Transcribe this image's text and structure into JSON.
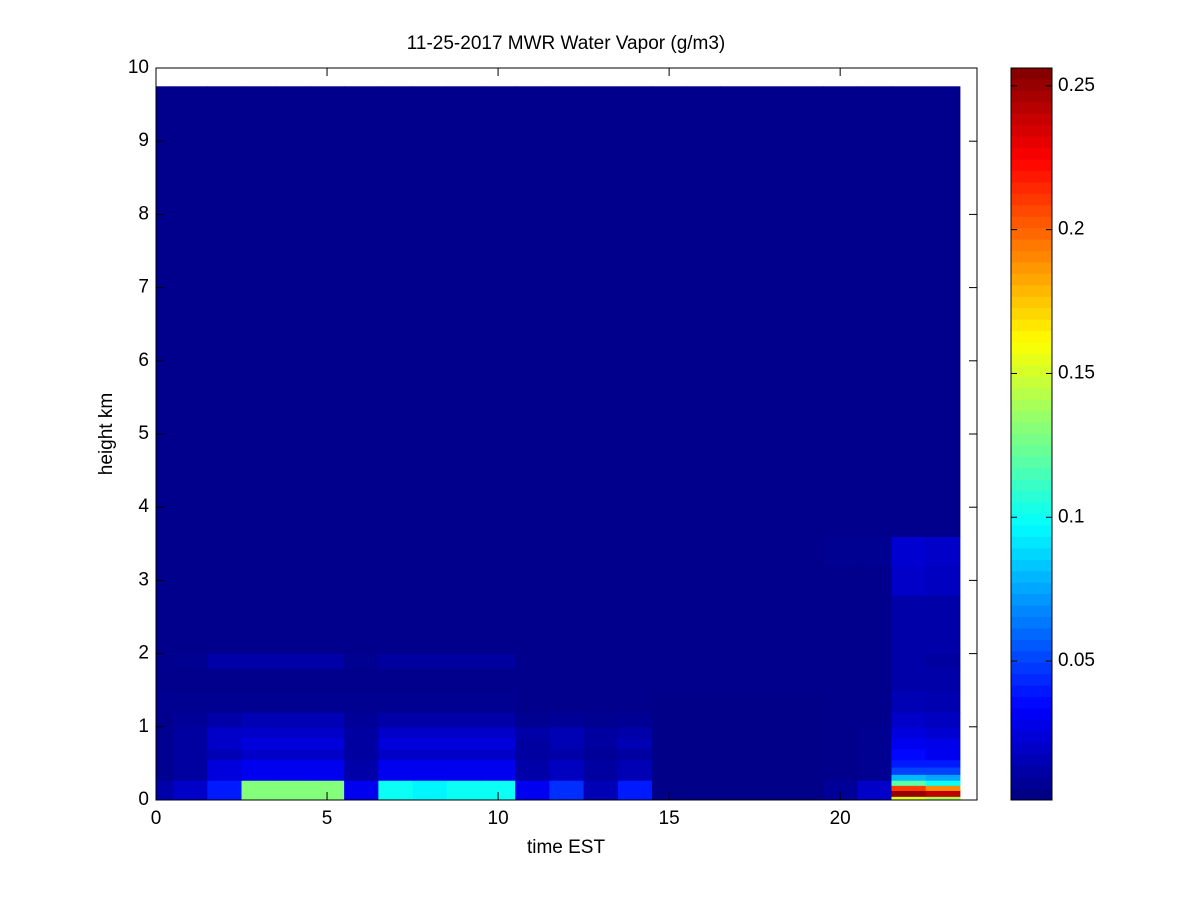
{
  "chart_data": {
    "type": "heatmap",
    "title": "11-25-2017 MWR Water Vapor (g/m3)",
    "xlabel": "time EST",
    "ylabel": "height km",
    "colormap": "jet",
    "xlim": [
      0,
      24
    ],
    "xticks": [
      0,
      5,
      10,
      15,
      20
    ],
    "ylim": [
      0,
      10
    ],
    "yticks": [
      0,
      1,
      2,
      3,
      4,
      5,
      6,
      7,
      8,
      9,
      10
    ],
    "clim": [
      0.0017,
      0.2562
    ],
    "cticks": [
      0.05,
      0.1,
      0.15,
      0.2,
      0.25
    ],
    "xbins": [
      0,
      0.5,
      1.5,
      2.5,
      3.5,
      4.5,
      5.5,
      6.5,
      7.5,
      8.5,
      9.5,
      10.5,
      11.5,
      12.5,
      13.5,
      14.5,
      15.5,
      16.5,
      17.5,
      18.5,
      19.5,
      20.5,
      21.5,
      22.5,
      23.5
    ],
    "ybins": [
      0,
      0.05,
      0.13,
      0.2,
      0.27,
      0.35,
      0.45,
      0.55,
      0.7,
      0.85,
      1.0,
      1.2,
      1.5,
      1.8,
      2.0,
      2.8,
      3.2,
      3.6,
      9.75
    ],
    "values": [
      [
        0.012,
        0.02,
        0.04,
        0.13,
        0.13,
        0.13,
        0.03,
        0.1,
        0.095,
        0.1,
        0.1,
        0.03,
        0.045,
        0.015,
        0.04,
        0.004,
        0.004,
        0.004,
        0.004,
        0.004,
        0.008,
        0.02,
        0.15,
        0.14
      ],
      [
        0.012,
        0.02,
        0.04,
        0.13,
        0.13,
        0.13,
        0.03,
        0.1,
        0.095,
        0.1,
        0.1,
        0.03,
        0.045,
        0.015,
        0.04,
        0.004,
        0.004,
        0.004,
        0.004,
        0.004,
        0.008,
        0.02,
        0.25,
        0.24
      ],
      [
        0.012,
        0.02,
        0.04,
        0.13,
        0.13,
        0.13,
        0.03,
        0.1,
        0.095,
        0.1,
        0.1,
        0.03,
        0.045,
        0.015,
        0.04,
        0.004,
        0.004,
        0.004,
        0.004,
        0.004,
        0.008,
        0.02,
        0.21,
        0.19
      ],
      [
        0.012,
        0.02,
        0.04,
        0.13,
        0.13,
        0.13,
        0.03,
        0.1,
        0.095,
        0.1,
        0.1,
        0.03,
        0.045,
        0.015,
        0.04,
        0.004,
        0.004,
        0.004,
        0.004,
        0.004,
        0.008,
        0.02,
        0.12,
        0.1
      ],
      [
        0.006,
        0.01,
        0.025,
        0.03,
        0.03,
        0.03,
        0.012,
        0.03,
        0.03,
        0.03,
        0.03,
        0.012,
        0.018,
        0.01,
        0.015,
        0.004,
        0.004,
        0.004,
        0.004,
        0.004,
        0.005,
        0.006,
        0.08,
        0.075
      ],
      [
        0.006,
        0.01,
        0.025,
        0.03,
        0.03,
        0.03,
        0.012,
        0.03,
        0.03,
        0.03,
        0.03,
        0.012,
        0.018,
        0.01,
        0.015,
        0.004,
        0.004,
        0.004,
        0.004,
        0.004,
        0.005,
        0.006,
        0.05,
        0.05
      ],
      [
        0.006,
        0.01,
        0.025,
        0.03,
        0.03,
        0.03,
        0.012,
        0.03,
        0.03,
        0.03,
        0.03,
        0.012,
        0.018,
        0.01,
        0.015,
        0.004,
        0.004,
        0.004,
        0.004,
        0.004,
        0.005,
        0.006,
        0.04,
        0.04
      ],
      [
        0.006,
        0.01,
        0.015,
        0.02,
        0.02,
        0.02,
        0.01,
        0.02,
        0.02,
        0.02,
        0.02,
        0.01,
        0.012,
        0.008,
        0.01,
        0.004,
        0.004,
        0.004,
        0.004,
        0.004,
        0.005,
        0.006,
        0.035,
        0.03
      ],
      [
        0.006,
        0.01,
        0.02,
        0.025,
        0.025,
        0.025,
        0.01,
        0.025,
        0.025,
        0.025,
        0.025,
        0.01,
        0.015,
        0.01,
        0.015,
        0.004,
        0.004,
        0.004,
        0.004,
        0.004,
        0.005,
        0.006,
        0.03,
        0.028
      ],
      [
        0.006,
        0.01,
        0.02,
        0.02,
        0.02,
        0.02,
        0.01,
        0.02,
        0.02,
        0.02,
        0.02,
        0.012,
        0.015,
        0.01,
        0.012,
        0.004,
        0.004,
        0.004,
        0.004,
        0.004,
        0.005,
        0.006,
        0.025,
        0.022
      ],
      [
        0.005,
        0.008,
        0.012,
        0.015,
        0.015,
        0.015,
        0.008,
        0.012,
        0.012,
        0.012,
        0.012,
        0.006,
        0.008,
        0.006,
        0.007,
        0.004,
        0.004,
        0.004,
        0.004,
        0.004,
        0.005,
        0.005,
        0.02,
        0.018
      ],
      [
        0.006,
        0.006,
        0.006,
        0.006,
        0.006,
        0.006,
        0.006,
        0.006,
        0.006,
        0.006,
        0.006,
        0.005,
        0.005,
        0.005,
        0.005,
        0.004,
        0.004,
        0.004,
        0.004,
        0.004,
        0.005,
        0.005,
        0.015,
        0.014
      ],
      [
        0.005,
        0.005,
        0.005,
        0.005,
        0.005,
        0.005,
        0.005,
        0.005,
        0.005,
        0.005,
        0.005,
        0.005,
        0.005,
        0.005,
        0.005,
        0.005,
        0.005,
        0.005,
        0.005,
        0.005,
        0.005,
        0.005,
        0.012,
        0.012
      ],
      [
        0.005,
        0.006,
        0.012,
        0.012,
        0.012,
        0.012,
        0.006,
        0.01,
        0.01,
        0.01,
        0.01,
        0.005,
        0.005,
        0.005,
        0.005,
        0.005,
        0.005,
        0.005,
        0.005,
        0.005,
        0.005,
        0.005,
        0.012,
        0.01
      ],
      [
        0.005,
        0.005,
        0.005,
        0.005,
        0.005,
        0.005,
        0.005,
        0.005,
        0.005,
        0.005,
        0.005,
        0.005,
        0.005,
        0.005,
        0.005,
        0.005,
        0.005,
        0.005,
        0.005,
        0.005,
        0.005,
        0.005,
        0.012,
        0.012
      ],
      [
        0.005,
        0.005,
        0.005,
        0.005,
        0.005,
        0.005,
        0.005,
        0.005,
        0.005,
        0.005,
        0.005,
        0.005,
        0.005,
        0.005,
        0.005,
        0.005,
        0.005,
        0.005,
        0.005,
        0.005,
        0.005,
        0.005,
        0.02,
        0.018
      ],
      [
        0.005,
        0.005,
        0.005,
        0.005,
        0.005,
        0.005,
        0.005,
        0.005,
        0.005,
        0.005,
        0.005,
        0.005,
        0.005,
        0.005,
        0.005,
        0.005,
        0.005,
        0.005,
        0.005,
        0.005,
        0.006,
        0.006,
        0.022,
        0.02
      ],
      [
        0.005,
        0.005,
        0.005,
        0.005,
        0.005,
        0.005,
        0.005,
        0.005,
        0.005,
        0.005,
        0.005,
        0.005,
        0.005,
        0.005,
        0.005,
        0.005,
        0.005,
        0.005,
        0.005,
        0.005,
        0.005,
        0.005,
        0.005,
        0.005
      ]
    ]
  }
}
